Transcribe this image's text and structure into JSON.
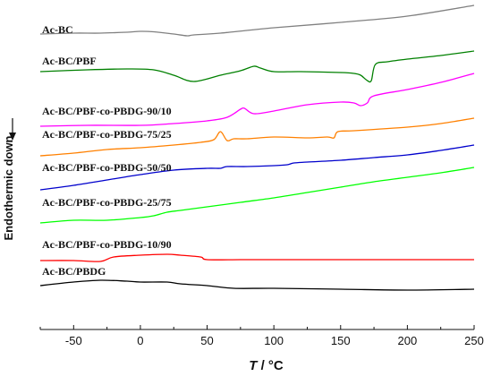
{
  "chart_data": {
    "type": "line",
    "xlabel": "T / °C",
    "ylabel": "Endothermic down",
    "xlim": [
      -75,
      250
    ],
    "xticks": [
      -50,
      0,
      50,
      100,
      150,
      200,
      250
    ],
    "grid": false,
    "series": [
      {
        "name": "Ac-BC",
        "color": "#808080",
        "x": [
          -75,
          -50,
          -30,
          -10,
          0,
          10,
          25,
          35,
          40,
          60,
          100,
          150,
          200,
          250
        ],
        "y": [
          38,
          37,
          37,
          36,
          35,
          35.5,
          38,
          40,
          39,
          37,
          31,
          25,
          18,
          6
        ]
      },
      {
        "name": "Ac-BC/PBF",
        "color": "#008000",
        "x": [
          -75,
          -40,
          -10,
          10,
          25,
          40,
          60,
          75,
          85,
          90,
          100,
          120,
          150,
          160,
          165,
          170,
          173,
          176,
          185,
          200,
          225,
          250
        ],
        "y": [
          80,
          78,
          77,
          78,
          84,
          91,
          84,
          79,
          74,
          76,
          80,
          80,
          81,
          82,
          84,
          90,
          90,
          72,
          69,
          66,
          62,
          57
        ]
      },
      {
        "name": "Ac-BC/PBF-co-PBDG-90/10",
        "color": "#FF00FF",
        "x": [
          -75,
          -40,
          0,
          25,
          50,
          65,
          75,
          78,
          85,
          100,
          125,
          150,
          160,
          165,
          170,
          175,
          200,
          225,
          250
        ],
        "y": [
          141,
          140,
          140,
          138,
          135,
          131,
          122,
          121,
          127,
          124,
          117,
          114,
          115,
          118,
          115,
          107,
          100,
          92,
          82
        ]
      },
      {
        "name": "Ac-BC/PBF-co-PBDG-75/25",
        "color": "#FF8000",
        "x": [
          -75,
          -50,
          -25,
          0,
          25,
          45,
          55,
          60,
          65,
          70,
          80,
          100,
          125,
          140,
          145,
          148,
          160,
          200,
          225,
          250
        ],
        "y": [
          174,
          171,
          167,
          165,
          162,
          159,
          156,
          147,
          157,
          155,
          155,
          153,
          154,
          153,
          154,
          147,
          146,
          142,
          138,
          132
        ]
      },
      {
        "name": "Ac-BC/PBF-co-PBDG-50/50",
        "color": "#0000CC",
        "x": [
          -75,
          -50,
          -25,
          0,
          25,
          50,
          60,
          65,
          80,
          100,
          110,
          115,
          125,
          150,
          175,
          200,
          225,
          250
        ],
        "y": [
          212,
          207,
          201,
          195,
          190,
          188,
          188,
          186,
          186,
          185,
          184,
          182,
          181,
          179,
          176,
          173,
          168,
          162
        ]
      },
      {
        "name": "Ac-BC/PBF-co-PBDG-25/75",
        "color": "#00FF00",
        "x": [
          -75,
          -50,
          -25,
          0,
          10,
          20,
          30,
          50,
          75,
          100,
          125,
          150,
          175,
          200,
          225,
          250
        ],
        "y": [
          249,
          246,
          246,
          243,
          241,
          237,
          235,
          231,
          226,
          221,
          215,
          209,
          203,
          198,
          193,
          187
        ]
      },
      {
        "name": "Ac-BC/PBF-co-PBDG-10/90",
        "color": "#FF0000",
        "x": [
          -75,
          -50,
          -30,
          -20,
          0,
          20,
          30,
          45,
          50,
          75,
          100,
          150,
          200,
          250
        ],
        "y": [
          291,
          291,
          292,
          287,
          285,
          284,
          285,
          287,
          290,
          290,
          290,
          290,
          290,
          290
        ]
      },
      {
        "name": "Ac-BC/PBDG",
        "color": "#000000",
        "x": [
          -75,
          -50,
          -30,
          -10,
          0,
          20,
          30,
          50,
          70,
          100,
          150,
          200,
          250
        ],
        "y": [
          319,
          315,
          313,
          314,
          315,
          315,
          317,
          319,
          322,
          322,
          323,
          324,
          323
        ]
      }
    ],
    "labels": [
      "Ac-BC",
      "Ac-BC/PBF",
      "Ac-BC/PBF-co-PBDG-90/10",
      "Ac-BC/PBF-co-PBDG-75/25",
      "Ac-BC/PBF-co-PBDG-50/50",
      "Ac-BC/PBF-co-PBDG-25/75",
      "Ac-BC/PBF-co-PBDG-10/90",
      "Ac-BC/PBDG"
    ],
    "xlabel_parts": {
      "italic": "T",
      "rest": " / °C"
    }
  }
}
